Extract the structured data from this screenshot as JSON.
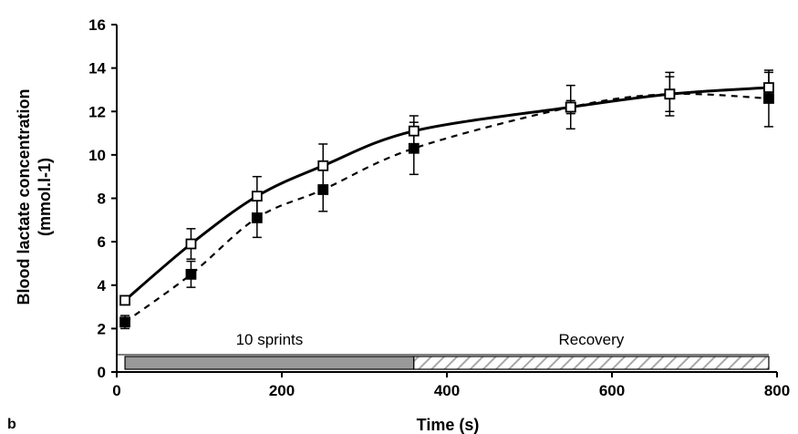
{
  "panel_letter": "b",
  "chart_data": {
    "type": "line",
    "xlabel": "Time (s)",
    "ylabel_line1": "Blood lactate concentration",
    "ylabel_line2": "(mmol.l-1)",
    "xlim": [
      0,
      800
    ],
    "ylim": [
      0,
      16
    ],
    "x_ticks": [
      0,
      200,
      400,
      600,
      800
    ],
    "y_ticks": [
      0,
      2,
      4,
      6,
      8,
      10,
      12,
      14,
      16
    ],
    "grid": false,
    "series": [
      {
        "marker": "open-square",
        "line_style": "solid",
        "color": "#000000",
        "x": [
          10,
          90,
          170,
          250,
          360,
          550,
          670,
          790
        ],
        "y": [
          3.3,
          5.9,
          8.1,
          9.5,
          11.1,
          12.2,
          12.8,
          13.1
        ],
        "err": [
          0.2,
          0.7,
          0.9,
          1.0,
          0.7,
          1.0,
          1.0,
          0.7
        ]
      },
      {
        "marker": "filled-square",
        "line_style": "dashed",
        "color": "#000000",
        "x": [
          10,
          90,
          170,
          250,
          360,
          550,
          670,
          790
        ],
        "y": [
          2.3,
          4.5,
          7.1,
          8.4,
          10.3,
          12.2,
          12.8,
          12.6
        ],
        "err": [
          0.3,
          0.6,
          0.9,
          1.0,
          1.2,
          0.3,
          0.8,
          1.3
        ]
      }
    ],
    "phases": [
      {
        "label": "10 sprints",
        "x_start": 10,
        "x_end": 360,
        "fill": "gray"
      },
      {
        "label": "Recovery",
        "x_start": 360,
        "x_end": 790,
        "fill": "hatched"
      }
    ]
  }
}
